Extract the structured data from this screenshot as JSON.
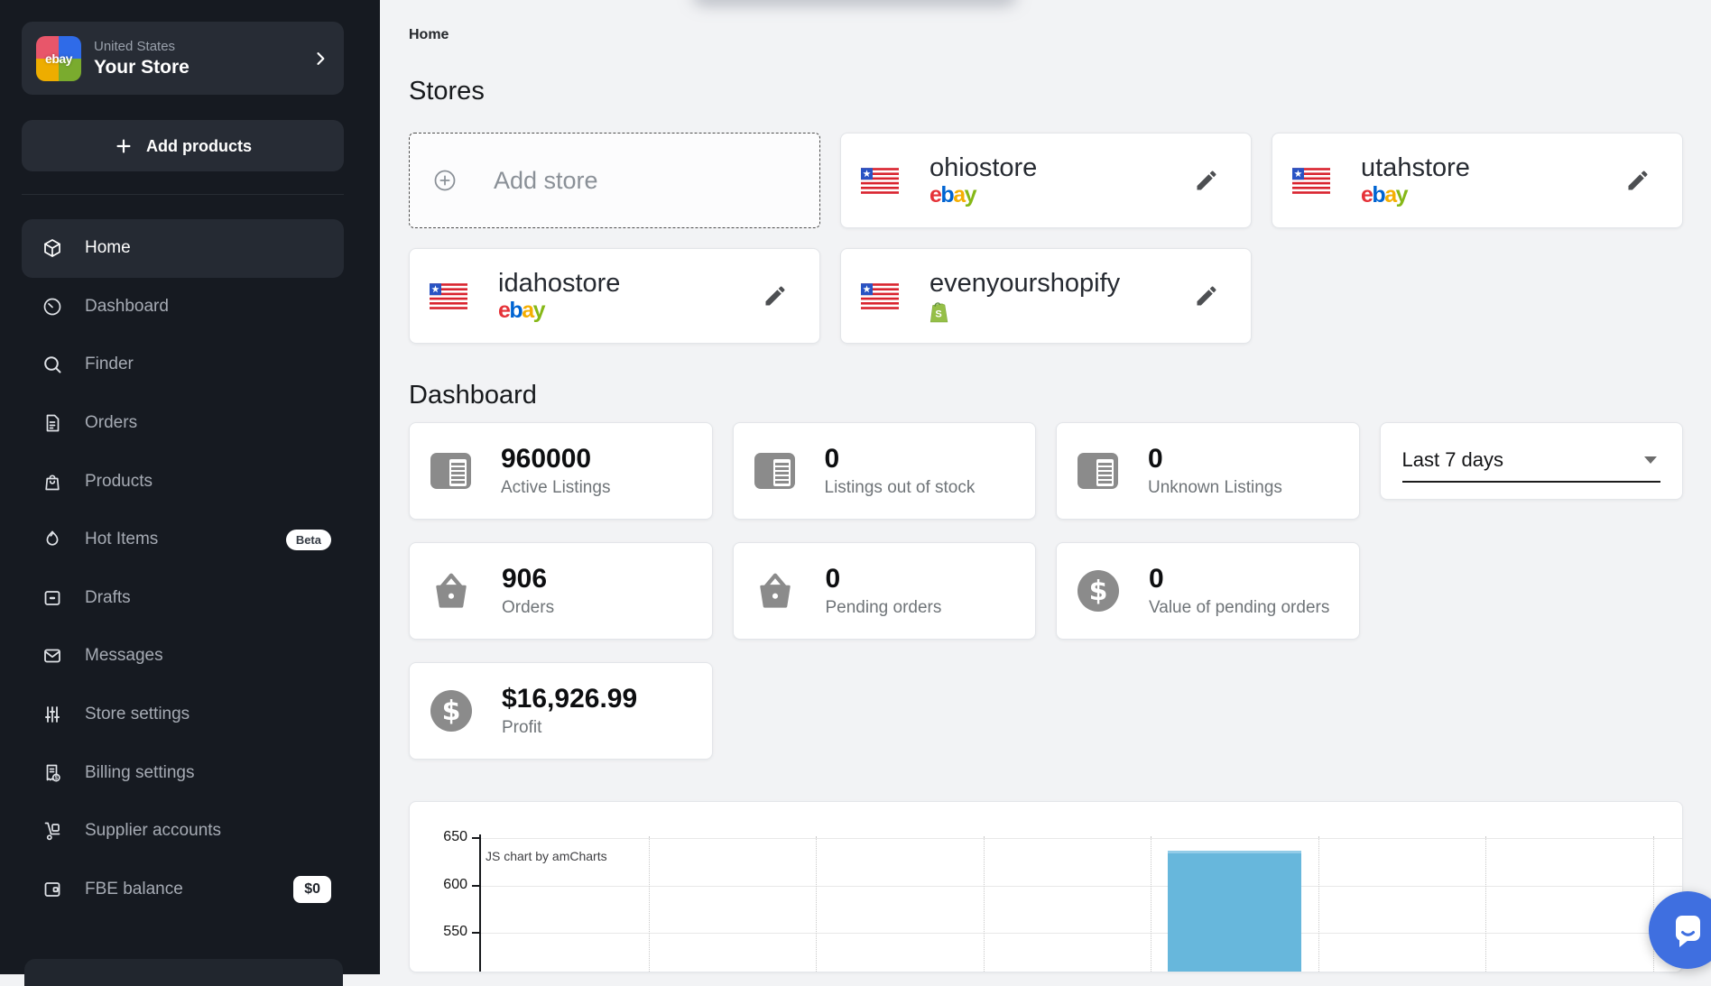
{
  "sidebar": {
    "store_switcher": {
      "logo_text": "ebay",
      "country": "United States",
      "store_name": "Your Store"
    },
    "add_products_label": "Add products",
    "items": [
      {
        "label": "Home",
        "icon": "cube",
        "active": true
      },
      {
        "label": "Dashboard",
        "icon": "gauge"
      },
      {
        "label": "Finder",
        "icon": "search"
      },
      {
        "label": "Orders",
        "icon": "document"
      },
      {
        "label": "Products",
        "icon": "shopping-bag"
      },
      {
        "label": "Hot Items",
        "icon": "flame",
        "badge": "Beta"
      },
      {
        "label": "Drafts",
        "icon": "draft-square"
      },
      {
        "label": "Messages",
        "icon": "envelope"
      },
      {
        "label": "Store settings",
        "icon": "sliders"
      },
      {
        "label": "Billing settings",
        "icon": "receipt-dollar"
      },
      {
        "label": "Supplier accounts",
        "icon": "hand-truck"
      },
      {
        "label": "FBE balance",
        "icon": "wallet",
        "badge": "$0"
      }
    ]
  },
  "breadcrumb": "Home",
  "stores": {
    "title": "Stores",
    "add_store_label": "Add store",
    "cards": [
      {
        "name": "ohiostore",
        "platform": "ebay",
        "flag": "liberia"
      },
      {
        "name": "utahstore",
        "platform": "ebay",
        "flag": "liberia"
      },
      {
        "name": "idahostore",
        "platform": "ebay",
        "flag": "liberia"
      },
      {
        "name": "evenyourshopify",
        "platform": "shopify",
        "flag": "liberia"
      }
    ]
  },
  "brand": {
    "ebay": {
      "letters": [
        {
          "char": "e",
          "color": "#e53238"
        },
        {
          "char": "b",
          "color": "#0064d2"
        },
        {
          "char": "a",
          "color": "#f5af02"
        },
        {
          "char": "y",
          "color": "#86b817"
        }
      ]
    },
    "shopify": {
      "color": "#95bf47"
    }
  },
  "dashboard": {
    "title": "Dashboard",
    "period_select": {
      "value": "Last 7 days"
    },
    "stats": [
      {
        "value": "960000",
        "label": "Active Listings",
        "icon": "listing"
      },
      {
        "value": "0",
        "label": "Listings out of stock",
        "icon": "listing"
      },
      {
        "value": "0",
        "label": "Unknown Listings",
        "icon": "listing"
      },
      {
        "value": "906",
        "label": "Orders",
        "icon": "basket"
      },
      {
        "value": "0",
        "label": "Pending orders",
        "icon": "basket"
      },
      {
        "value": "0",
        "label": "Value of pending orders",
        "icon": "dollar"
      },
      {
        "value": "$16,926.99",
        "label": "Profit",
        "icon": "dollar"
      }
    ]
  },
  "chart_data": {
    "type": "bar",
    "watermark": "JS chart by amCharts",
    "visible_y_ticks": [
      650,
      600,
      550
    ],
    "y_visible_range": [
      520,
      660
    ],
    "vertical_gridlines": 7,
    "bars_visible": [
      {
        "slot": 4,
        "value": 637
      }
    ],
    "bar_color": "#67b7dc",
    "grid": true,
    "bottom_cut_off": true
  },
  "chat": {
    "color": "#3f6fe0"
  }
}
